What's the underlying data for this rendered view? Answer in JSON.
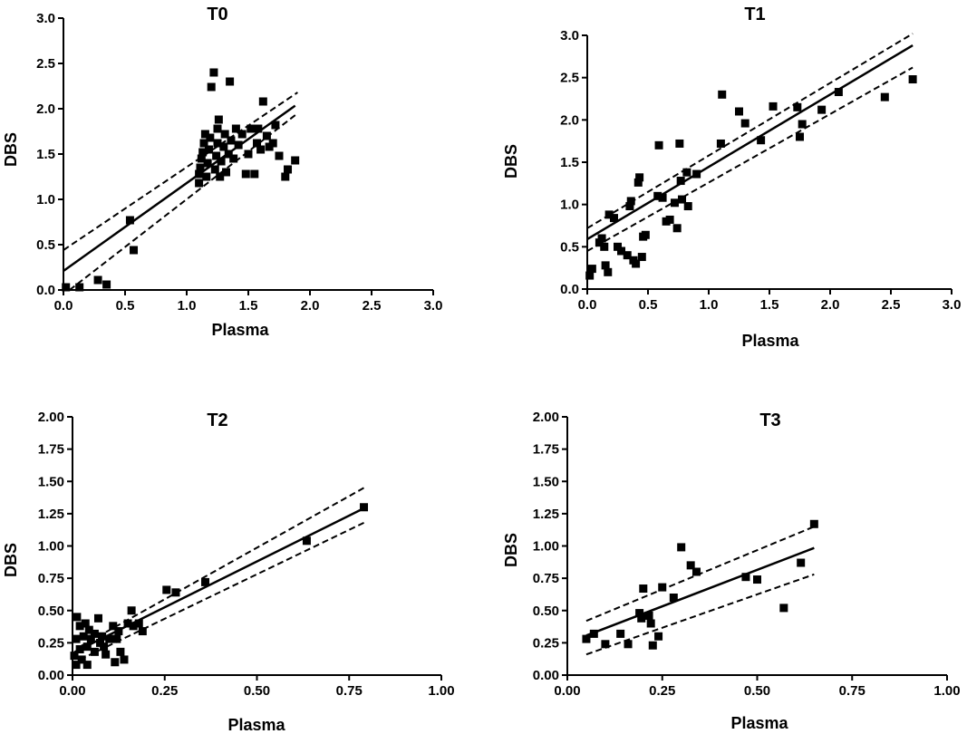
{
  "chart_data": [
    {
      "type": "scatter",
      "title": "T0",
      "xlabel": "Plasma",
      "ylabel": "DBS",
      "xlim": [
        0,
        3
      ],
      "ylim": [
        0,
        3
      ],
      "x_ticks": [
        "0.0",
        "0.5",
        "1.0",
        "1.5",
        "2.0",
        "2.5",
        "3.0"
      ],
      "y_ticks": [
        "0.0",
        "0.5",
        "1.0",
        "1.5",
        "2.0",
        "2.5",
        "3.0"
      ],
      "points": [
        [
          0.02,
          0.03
        ],
        [
          0.13,
          0.03
        ],
        [
          0.28,
          0.11
        ],
        [
          0.35,
          0.06
        ],
        [
          0.54,
          0.77
        ],
        [
          0.57,
          0.44
        ],
        [
          1.1,
          1.18
        ],
        [
          1.1,
          1.28
        ],
        [
          1.11,
          1.35
        ],
        [
          1.12,
          1.45
        ],
        [
          1.13,
          1.52
        ],
        [
          1.14,
          1.62
        ],
        [
          1.15,
          1.72
        ],
        [
          1.16,
          1.25
        ],
        [
          1.17,
          1.4
        ],
        [
          1.18,
          1.55
        ],
        [
          1.19,
          1.68
        ],
        [
          1.2,
          2.24
        ],
        [
          1.22,
          2.4
        ],
        [
          1.23,
          1.33
        ],
        [
          1.24,
          1.48
        ],
        [
          1.25,
          1.62
        ],
        [
          1.25,
          1.78
        ],
        [
          1.26,
          1.88
        ],
        [
          1.27,
          1.25
        ],
        [
          1.28,
          1.42
        ],
        [
          1.3,
          1.58
        ],
        [
          1.31,
          1.72
        ],
        [
          1.32,
          1.3
        ],
        [
          1.34,
          1.5
        ],
        [
          1.35,
          2.3
        ],
        [
          1.36,
          1.65
        ],
        [
          1.38,
          1.45
        ],
        [
          1.4,
          1.78
        ],
        [
          1.42,
          1.6
        ],
        [
          1.45,
          1.72
        ],
        [
          1.48,
          1.28
        ],
        [
          1.5,
          1.5
        ],
        [
          1.52,
          1.78
        ],
        [
          1.55,
          1.28
        ],
        [
          1.57,
          1.62
        ],
        [
          1.58,
          1.78
        ],
        [
          1.6,
          1.55
        ],
        [
          1.62,
          2.08
        ],
        [
          1.65,
          1.7
        ],
        [
          1.67,
          1.58
        ],
        [
          1.7,
          1.62
        ],
        [
          1.72,
          1.82
        ],
        [
          1.75,
          1.48
        ],
        [
          1.8,
          1.25
        ],
        [
          1.82,
          1.33
        ],
        [
          1.88,
          1.43
        ]
      ],
      "fit": {
        "slope": 0.97,
        "intercept": 0.21
      },
      "ci_upper": [
        [
          0.0,
          0.44
        ],
        [
          1.9,
          2.18
        ]
      ],
      "ci_lower": [
        [
          0.05,
          0.0
        ],
        [
          1.9,
          1.95
        ]
      ]
    },
    {
      "type": "scatter",
      "title": "T1",
      "xlabel": "Plasma",
      "ylabel": "DBS",
      "xlim": [
        0,
        3
      ],
      "ylim": [
        0,
        3
      ],
      "x_ticks": [
        "0.0",
        "0.5",
        "1.0",
        "1.5",
        "2.0",
        "2.5",
        "3.0"
      ],
      "y_ticks": [
        "0.0",
        "0.5",
        "1.0",
        "1.5",
        "2.0",
        "2.5",
        "3.0"
      ],
      "points": [
        [
          0.02,
          0.16
        ],
        [
          0.04,
          0.24
        ],
        [
          0.1,
          0.55
        ],
        [
          0.12,
          0.6
        ],
        [
          0.14,
          0.5
        ],
        [
          0.15,
          0.28
        ],
        [
          0.17,
          0.2
        ],
        [
          0.18,
          0.88
        ],
        [
          0.22,
          0.84
        ],
        [
          0.25,
          0.5
        ],
        [
          0.28,
          0.45
        ],
        [
          0.33,
          0.4
        ],
        [
          0.35,
          0.98
        ],
        [
          0.36,
          1.04
        ],
        [
          0.38,
          0.34
        ],
        [
          0.4,
          0.3
        ],
        [
          0.42,
          1.26
        ],
        [
          0.43,
          1.32
        ],
        [
          0.45,
          0.38
        ],
        [
          0.46,
          0.62
        ],
        [
          0.48,
          0.64
        ],
        [
          0.58,
          1.1
        ],
        [
          0.59,
          1.7
        ],
        [
          0.62,
          1.08
        ],
        [
          0.65,
          0.8
        ],
        [
          0.68,
          0.82
        ],
        [
          0.72,
          1.02
        ],
        [
          0.74,
          0.72
        ],
        [
          0.76,
          1.72
        ],
        [
          0.77,
          1.28
        ],
        [
          0.78,
          1.06
        ],
        [
          0.82,
          1.38
        ],
        [
          0.83,
          0.98
        ],
        [
          0.9,
          1.36
        ],
        [
          1.1,
          1.72
        ],
        [
          1.11,
          2.3
        ],
        [
          1.25,
          2.1
        ],
        [
          1.3,
          1.96
        ],
        [
          1.43,
          1.76
        ],
        [
          1.53,
          2.16
        ],
        [
          1.73,
          2.15
        ],
        [
          1.75,
          1.8
        ],
        [
          1.77,
          1.95
        ],
        [
          1.93,
          2.12
        ],
        [
          2.07,
          2.33
        ],
        [
          2.45,
          2.27
        ],
        [
          2.68,
          2.48
        ]
      ],
      "fit": {
        "slope": 0.855,
        "intercept": 0.59
      },
      "ci_upper": [
        [
          0.0,
          0.72
        ],
        [
          2.68,
          3.02
        ]
      ],
      "ci_lower": [
        [
          0.0,
          0.45
        ],
        [
          2.68,
          2.62
        ]
      ]
    },
    {
      "type": "scatter",
      "title": "T2",
      "xlabel": "Plasma",
      "ylabel": "DBS",
      "xlim": [
        0,
        1
      ],
      "ylim": [
        0,
        2
      ],
      "x_ticks": [
        "0.00",
        "0.25",
        "0.50",
        "0.75",
        "1.00"
      ],
      "y_ticks": [
        "0.00",
        "0.25",
        "0.50",
        "0.75",
        "1.00",
        "1.25",
        "1.50",
        "1.75",
        "2.00"
      ],
      "points": [
        [
          0.005,
          0.15
        ],
        [
          0.01,
          0.08
        ],
        [
          0.01,
          0.28
        ],
        [
          0.012,
          0.45
        ],
        [
          0.02,
          0.38
        ],
        [
          0.02,
          0.2
        ],
        [
          0.025,
          0.12
        ],
        [
          0.03,
          0.3
        ],
        [
          0.035,
          0.4
        ],
        [
          0.04,
          0.08
        ],
        [
          0.04,
          0.22
        ],
        [
          0.045,
          0.35
        ],
        [
          0.05,
          0.28
        ],
        [
          0.06,
          0.18
        ],
        [
          0.06,
          0.32
        ],
        [
          0.07,
          0.44
        ],
        [
          0.075,
          0.25
        ],
        [
          0.08,
          0.3
        ],
        [
          0.085,
          0.22
        ],
        [
          0.09,
          0.16
        ],
        [
          0.1,
          0.28
        ],
        [
          0.11,
          0.38
        ],
        [
          0.115,
          0.1
        ],
        [
          0.12,
          0.28
        ],
        [
          0.125,
          0.34
        ],
        [
          0.13,
          0.18
        ],
        [
          0.14,
          0.12
        ],
        [
          0.15,
          0.4
        ],
        [
          0.16,
          0.5
        ],
        [
          0.165,
          0.38
        ],
        [
          0.18,
          0.4
        ],
        [
          0.19,
          0.34
        ],
        [
          0.255,
          0.66
        ],
        [
          0.28,
          0.64
        ],
        [
          0.36,
          0.72
        ],
        [
          0.635,
          1.04
        ],
        [
          0.79,
          1.3
        ]
      ],
      "fit": {
        "slope": 1.42,
        "intercept": 0.17
      },
      "ci_upper": [
        [
          0.02,
          0.22
        ],
        [
          0.79,
          1.45
        ]
      ],
      "ci_lower": [
        [
          0.02,
          0.12
        ],
        [
          0.79,
          1.18
        ]
      ]
    },
    {
      "type": "scatter",
      "title": "T3",
      "xlabel": "Plasma",
      "ylabel": "DBS",
      "xlim": [
        0,
        1
      ],
      "ylim": [
        0,
        2
      ],
      "x_ticks": [
        "0.00",
        "0.25",
        "0.50",
        "0.75",
        "1.00"
      ],
      "y_ticks": [
        "0.00",
        "0.25",
        "0.50",
        "0.75",
        "1.00",
        "1.25",
        "1.50",
        "1.75",
        "2.00"
      ],
      "points": [
        [
          0.05,
          0.28
        ],
        [
          0.07,
          0.32
        ],
        [
          0.1,
          0.24
        ],
        [
          0.14,
          0.32
        ],
        [
          0.16,
          0.24
        ],
        [
          0.19,
          0.48
        ],
        [
          0.195,
          0.44
        ],
        [
          0.2,
          0.67
        ],
        [
          0.215,
          0.46
        ],
        [
          0.22,
          0.4
        ],
        [
          0.225,
          0.23
        ],
        [
          0.24,
          0.3
        ],
        [
          0.25,
          0.68
        ],
        [
          0.28,
          0.6
        ],
        [
          0.3,
          0.99
        ],
        [
          0.325,
          0.85
        ],
        [
          0.34,
          0.8
        ],
        [
          0.47,
          0.76
        ],
        [
          0.5,
          0.74
        ],
        [
          0.57,
          0.52
        ],
        [
          0.615,
          0.87
        ],
        [
          0.65,
          1.17
        ]
      ],
      "fit": {
        "slope": 1.13,
        "intercept": 0.25
      },
      "ci_upper": [
        [
          0.05,
          0.42
        ],
        [
          0.65,
          1.15
        ]
      ],
      "ci_lower": [
        [
          0.05,
          0.16
        ],
        [
          0.65,
          0.78
        ]
      ]
    }
  ]
}
